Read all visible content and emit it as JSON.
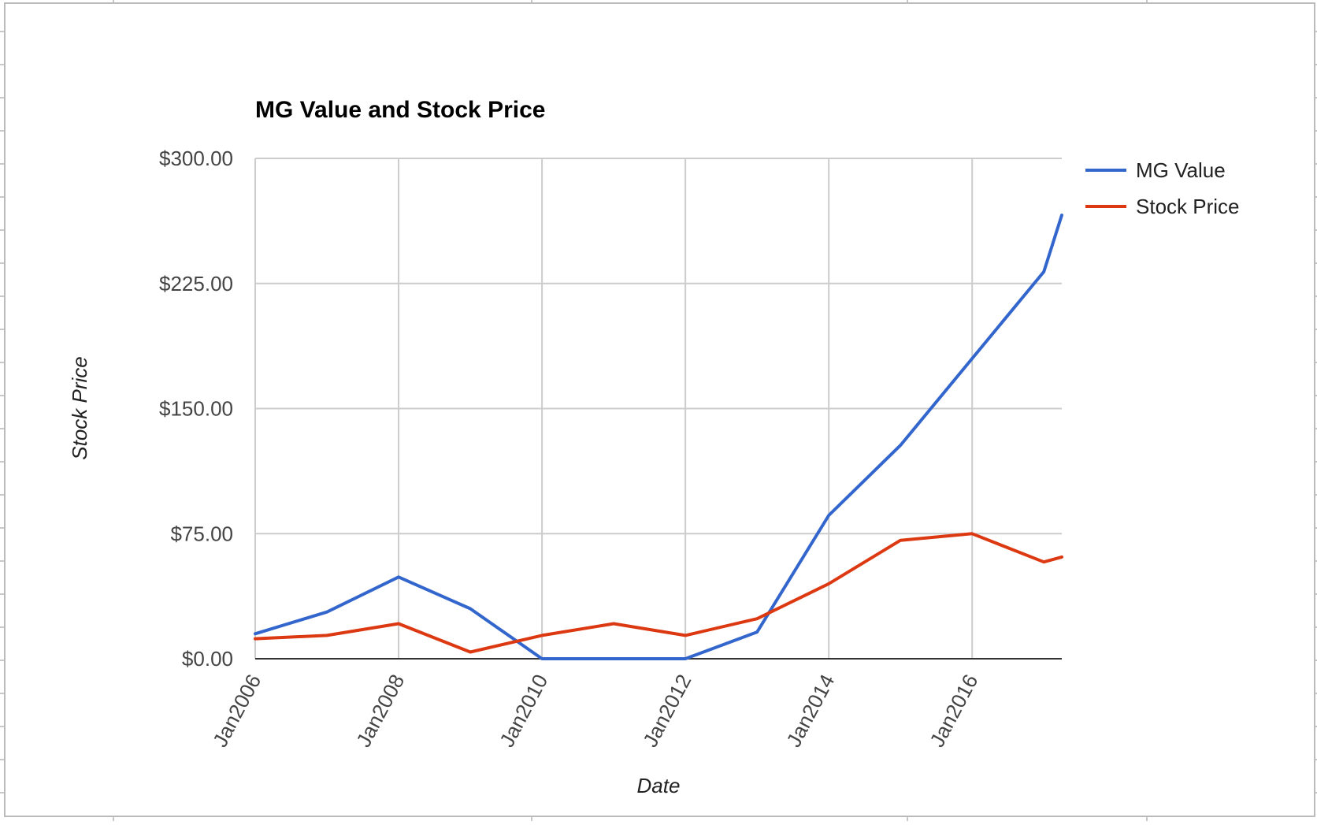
{
  "chart_data": {
    "type": "line",
    "title": "MG Value and Stock Price",
    "xlabel": "Date",
    "ylabel": "Stock Price",
    "x_tick_labels": [
      "Jan2006",
      "Jan2008",
      "Jan2010",
      "Jan2012",
      "Jan2014",
      "Jan2016"
    ],
    "y_tick_labels": [
      "$0.00",
      "$75.00",
      "$150.00",
      "$225.00",
      "$300.00"
    ],
    "ylim": [
      0,
      300
    ],
    "y_ticks": [
      0,
      75,
      150,
      225,
      300
    ],
    "xlim": [
      "2006-01",
      "2017-04"
    ],
    "x_ticks": [
      "2006-01",
      "2008-01",
      "2010-01",
      "2012-01",
      "2014-01",
      "2016-01"
    ],
    "x": [
      "2006-01",
      "2007-01",
      "2008-01",
      "2009-01",
      "2010-01",
      "2011-01",
      "2012-01",
      "2013-01",
      "2014-01",
      "2015-01",
      "2016-01",
      "2017-01",
      "2017-04"
    ],
    "series": [
      {
        "name": "MG Value",
        "color": "#3366cc",
        "values": [
          15,
          28,
          49,
          30,
          0,
          0,
          0,
          16,
          86,
          128,
          180,
          232,
          266
        ]
      },
      {
        "name": "Stock Price",
        "color": "#dc3912",
        "values": [
          12,
          14,
          21,
          4,
          14,
          21,
          14,
          24,
          45,
          71,
          75,
          58,
          61
        ]
      }
    ],
    "grid": true,
    "legend_position": "right"
  }
}
